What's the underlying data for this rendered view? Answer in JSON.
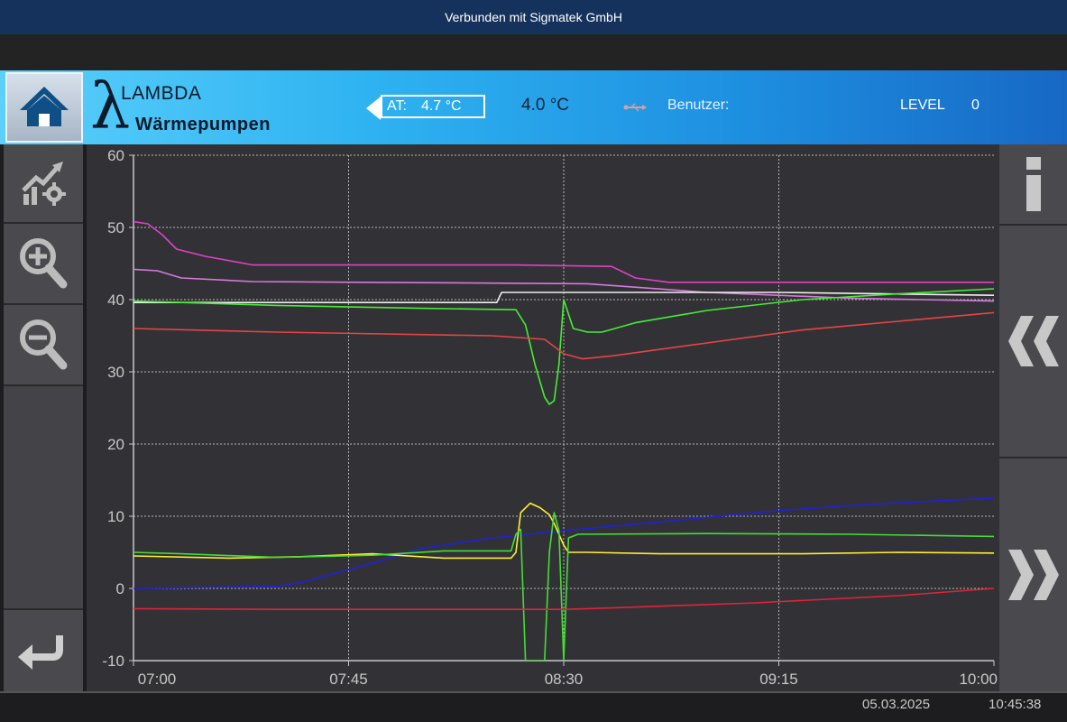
{
  "connection": {
    "status": "Verbunden mit Sigmatek GmbH"
  },
  "header": {
    "logo_name": "LAMBDA",
    "logo_sub": "Wärmepumpen",
    "at_label": "AT:",
    "at_value": "4.7 °C",
    "temperature": "4.0 °C",
    "user_label": "Benutzer:",
    "level_label": "LEVEL",
    "level_value": "0"
  },
  "icons": {
    "home": "home-icon",
    "chart_settings": "chart-settings-icon",
    "zoom_in": "zoom-in-icon",
    "zoom_out": "zoom-out-icon",
    "back": "back-arrow-icon",
    "info": "info-icon",
    "prev": "double-chevron-left-icon",
    "next": "double-chevron-right-icon",
    "usb": "usb-icon"
  },
  "status": {
    "date": "05.03.2025",
    "time": "10:45:38"
  },
  "chart_data": {
    "type": "line",
    "xlim": [
      0,
      180
    ],
    "ylim": [
      -10,
      60
    ],
    "x_ticks": [
      {
        "x": 0,
        "label": "07:00"
      },
      {
        "x": 45,
        "label": "07:45"
      },
      {
        "x": 90,
        "label": "08:30"
      },
      {
        "x": 135,
        "label": "09:15"
      },
      {
        "x": 180,
        "label": "10:00"
      }
    ],
    "y_ticks": [
      -10,
      0,
      10,
      20,
      30,
      40,
      50,
      60
    ],
    "grid": true,
    "series": [
      {
        "color": "#e040c8",
        "points": [
          [
            0,
            50.8
          ],
          [
            3,
            50.5
          ],
          [
            6,
            49.0
          ],
          [
            9,
            47.0
          ],
          [
            15,
            46.0
          ],
          [
            25,
            44.8
          ],
          [
            80,
            44.8
          ],
          [
            100,
            44.6
          ],
          [
            105,
            43.0
          ],
          [
            112,
            42.4
          ],
          [
            180,
            42.4
          ]
        ]
      },
      {
        "color": "#d878e0",
        "points": [
          [
            0,
            44.2
          ],
          [
            5,
            44.0
          ],
          [
            10,
            43.0
          ],
          [
            25,
            42.5
          ],
          [
            95,
            42.2
          ],
          [
            120,
            41.0
          ],
          [
            150,
            40.2
          ],
          [
            180,
            39.8
          ]
        ]
      },
      {
        "color": "#f0f0f0",
        "points": [
          [
            0,
            39.6
          ],
          [
            76,
            39.6
          ],
          [
            77,
            41.0
          ],
          [
            135,
            41.0
          ],
          [
            180,
            40.6
          ]
        ]
      },
      {
        "color": "#44ee33",
        "points": [
          [
            0,
            39.8
          ],
          [
            30,
            39.2
          ],
          [
            60,
            38.8
          ],
          [
            80,
            38.6
          ],
          [
            82,
            36.5
          ],
          [
            84,
            31.0
          ],
          [
            86,
            26.5
          ],
          [
            87,
            25.5
          ],
          [
            88,
            26.0
          ],
          [
            89,
            31.0
          ],
          [
            90,
            40.0
          ],
          [
            92,
            36.0
          ],
          [
            95,
            35.5
          ],
          [
            98,
            35.5
          ],
          [
            105,
            36.8
          ],
          [
            120,
            38.5
          ],
          [
            140,
            40.0
          ],
          [
            160,
            40.8
          ],
          [
            180,
            41.5
          ]
        ]
      },
      {
        "color": "#e84444",
        "points": [
          [
            0,
            36.0
          ],
          [
            30,
            35.5
          ],
          [
            75,
            35.0
          ],
          [
            86,
            34.5
          ],
          [
            90,
            32.5
          ],
          [
            94,
            31.8
          ],
          [
            100,
            32.2
          ],
          [
            120,
            34.0
          ],
          [
            140,
            35.8
          ],
          [
            160,
            37.0
          ],
          [
            180,
            38.2
          ]
        ]
      },
      {
        "color": "#2020dd",
        "points": [
          [
            0,
            0.0
          ],
          [
            30,
            0.3
          ],
          [
            35,
            0.8
          ],
          [
            50,
            3.5
          ],
          [
            60,
            5.5
          ],
          [
            75,
            7.0
          ],
          [
            90,
            8.0
          ],
          [
            110,
            9.2
          ],
          [
            130,
            10.5
          ],
          [
            150,
            11.5
          ],
          [
            170,
            12.2
          ],
          [
            180,
            12.5
          ]
        ]
      },
      {
        "color": "#ffee33",
        "points": [
          [
            0,
            4.5
          ],
          [
            20,
            4.2
          ],
          [
            35,
            4.4
          ],
          [
            50,
            4.8
          ],
          [
            65,
            4.2
          ],
          [
            79,
            4.2
          ],
          [
            80,
            5.0
          ],
          [
            81,
            10.5
          ],
          [
            83,
            11.8
          ],
          [
            85,
            11.2
          ],
          [
            87,
            10.2
          ],
          [
            88,
            9.0
          ],
          [
            90,
            6.0
          ],
          [
            91,
            5.0
          ],
          [
            95,
            5.0
          ],
          [
            110,
            4.8
          ],
          [
            140,
            4.8
          ],
          [
            160,
            5.0
          ],
          [
            180,
            4.9
          ]
        ]
      },
      {
        "color": "#44dd33",
        "points": [
          [
            0,
            5.0
          ],
          [
            10,
            4.8
          ],
          [
            30,
            4.3
          ],
          [
            50,
            4.6
          ],
          [
            65,
            5.2
          ],
          [
            79,
            5.2
          ],
          [
            80,
            7.5
          ],
          [
            81,
            8.2
          ],
          [
            82,
            -10
          ],
          [
            86,
            -10
          ],
          [
            87,
            5.0
          ],
          [
            88,
            10.5
          ],
          [
            89,
            8.0
          ],
          [
            90,
            -10
          ],
          [
            91,
            7.0
          ],
          [
            93,
            7.5
          ],
          [
            120,
            7.6
          ],
          [
            150,
            7.5
          ],
          [
            180,
            7.2
          ]
        ]
      },
      {
        "color": "#e0233a",
        "points": [
          [
            0,
            -2.8
          ],
          [
            30,
            -2.9
          ],
          [
            90,
            -2.9
          ],
          [
            100,
            -2.7
          ],
          [
            130,
            -2.0
          ],
          [
            160,
            -1.0
          ],
          [
            180,
            0.0
          ]
        ]
      }
    ]
  }
}
